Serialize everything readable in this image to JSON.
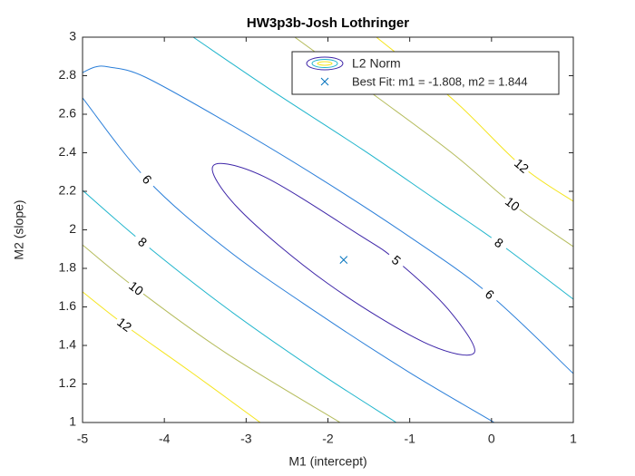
{
  "chart_data": {
    "type": "contour",
    "title": "HW3p3b-Josh Lothringer",
    "xlabel": "M1 (intercept)",
    "ylabel": "M2 (slope)",
    "xlim": [
      -5,
      1
    ],
    "ylim": [
      1,
      3
    ],
    "xticks": [
      -5,
      -4,
      -3,
      -2,
      -1,
      0,
      1
    ],
    "yticks": [
      1,
      1.2,
      1.4,
      1.6,
      1.8,
      2,
      2.2,
      2.4,
      2.6,
      2.8,
      3
    ],
    "grid": false,
    "legend_location": "northeast",
    "contour_name": "L2 Norm",
    "contours": [
      {
        "level": 5,
        "color": "#3e26a8",
        "closed": true,
        "x": [
          -0.211,
          -0.535,
          -1.166,
          -1.6,
          -2.786,
          -3.404,
          -3.079,
          -2.014,
          -0.828
        ],
        "y": [
          1.362,
          1.59,
          1.842,
          1.969,
          2.277,
          2.332,
          2.104,
          1.725,
          1.417
        ]
      },
      {
        "level": 6,
        "color": "#2b7fd9",
        "closed": false,
        "x": [
          -5,
          -4.845,
          -4.678,
          -4.235,
          -3.237,
          -2.129,
          -1.02,
          -0.022,
          1.0,
          null,
          -5,
          -4.213,
          -3.237,
          -2.129,
          -1.02,
          0.033
        ],
        "y": [
          2.816,
          2.845,
          2.845,
          2.793,
          2.558,
          2.275,
          1.969,
          1.664,
          1.254,
          null,
          2.685,
          2.261,
          1.899,
          1.569,
          1.264,
          1.0
        ]
      },
      {
        "level": 8,
        "color": "#1fb5cc",
        "closed": false,
        "x": [
          -3.647,
          -2.683,
          -1.574,
          -0.687,
          0.089,
          1.0,
          null,
          -5,
          -4.268,
          -3.237,
          -2.129,
          -1.164
        ],
        "y": [
          3.0,
          2.722,
          2.416,
          2.158,
          1.932,
          1.64,
          null,
          2.205,
          1.936,
          1.593,
          1.264,
          1.0
        ]
      },
      {
        "level": 10,
        "color": "#b5bc5c",
        "closed": false,
        "x": [
          -2.406,
          -1.353,
          -0.466,
          0.255,
          1.0,
          null,
          -5,
          -4.346,
          -3.237,
          -1.851
        ],
        "y": [
          3.0,
          2.675,
          2.393,
          2.134,
          1.913,
          null,
          1.922,
          1.696,
          1.358,
          1.0
        ]
      },
      {
        "level": 12,
        "color": "#f5e51f",
        "closed": false,
        "x": [
          -1.408,
          -0.466,
          0.366,
          1.0,
          null,
          -5,
          -4.49,
          -3.681,
          -2.827
        ],
        "y": [
          3.0,
          2.675,
          2.332,
          2.148,
          null,
          1.678,
          1.508,
          1.264,
          1.0
        ]
      }
    ],
    "best_fit": {
      "name": "Best Fit: m1 = -1.808, m2 = 1.844",
      "x": -1.808,
      "y": 1.844,
      "color": "#0072bd"
    }
  }
}
